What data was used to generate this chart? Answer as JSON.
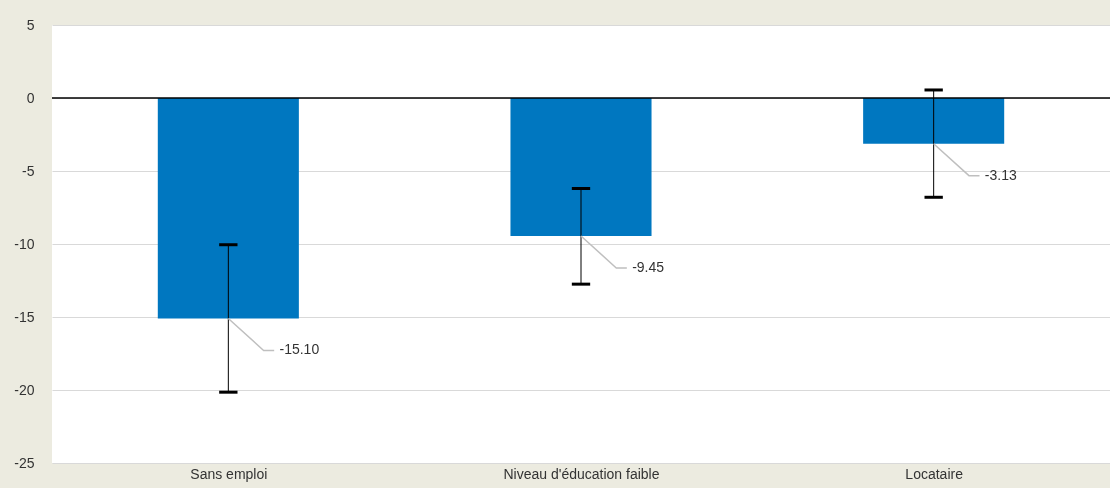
{
  "chart_data": {
    "type": "bar",
    "categories": [
      "Sans emploi",
      "Niveau d'éducation faible",
      "Locataire"
    ],
    "values": [
      -15.1,
      -9.45,
      -3.13
    ],
    "color": "#0077c0",
    "errors": [
      [
        -20.15,
        -10.05
      ],
      [
        -12.75,
        -6.2
      ],
      [
        -6.8,
        0.55
      ]
    ],
    "value_labels": [
      "-15.10",
      "-9.45",
      "-3.13"
    ],
    "ylim": [
      -25,
      5
    ],
    "yticks": [
      -25,
      -20,
      -15,
      -10,
      -5,
      0,
      5
    ],
    "grid": "y"
  }
}
